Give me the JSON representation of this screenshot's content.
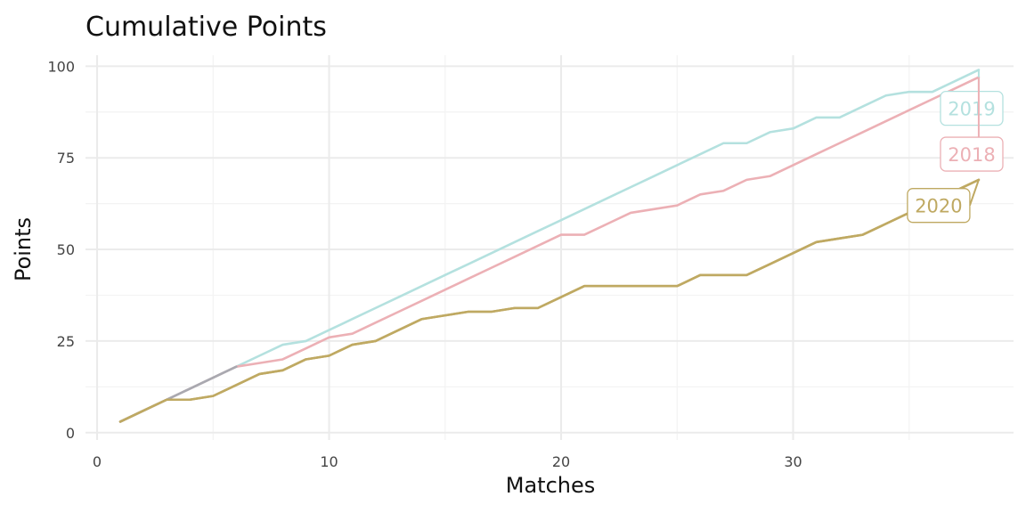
{
  "chart_data": {
    "type": "line",
    "title": "Cumulative Points",
    "xlabel": "Matches",
    "ylabel": "Points",
    "xlim": [
      -0.5,
      39.5
    ],
    "ylim": [
      -2,
      103
    ],
    "x_ticks": [
      0,
      10,
      20,
      30
    ],
    "x_tick_labels": [
      "0",
      "10",
      "20",
      "30"
    ],
    "y_ticks": [
      0,
      25,
      50,
      75,
      100
    ],
    "y_tick_labels": [
      "0",
      "25",
      "50",
      "75",
      "100"
    ],
    "grid": true,
    "legend": "none (direct labels at line ends)",
    "series": [
      {
        "name": "2019",
        "color": "#b4e1df",
        "x": [
          1,
          2,
          3,
          4,
          5,
          6,
          7,
          8,
          9,
          10,
          11,
          12,
          13,
          14,
          15,
          16,
          17,
          18,
          19,
          20,
          21,
          22,
          23,
          24,
          25,
          26,
          27,
          28,
          29,
          30,
          31,
          32,
          33,
          34,
          35,
          36,
          37,
          38
        ],
        "values": [
          3,
          6,
          9,
          12,
          15,
          18,
          21,
          24,
          25,
          28,
          31,
          34,
          37,
          40,
          43,
          46,
          49,
          52,
          55,
          58,
          61,
          64,
          67,
          70,
          73,
          76,
          79,
          79,
          82,
          83,
          86,
          86,
          89,
          92,
          93,
          93,
          96,
          99
        ]
      },
      {
        "name": "2018",
        "color": "#ecb0b5",
        "x": [
          1,
          2,
          3,
          4,
          5,
          6,
          7,
          8,
          9,
          10,
          11,
          12,
          13,
          14,
          15,
          16,
          17,
          18,
          19,
          20,
          21,
          22,
          23,
          24,
          25,
          26,
          27,
          28,
          29,
          30,
          31,
          32,
          33,
          34,
          35,
          36,
          37,
          38
        ],
        "values": [
          3,
          6,
          9,
          12,
          15,
          18,
          19,
          20,
          23,
          26,
          27,
          30,
          33,
          36,
          39,
          42,
          45,
          48,
          51,
          54,
          54,
          57,
          60,
          61,
          62,
          65,
          66,
          69,
          70,
          73,
          76,
          79,
          82,
          85,
          88,
          91,
          94,
          97
        ]
      },
      {
        "name": "2020",
        "color": "#bfa962",
        "x": [
          1,
          2,
          3,
          4,
          5,
          6,
          7,
          8,
          9,
          10,
          11,
          12,
          13,
          14,
          15,
          16,
          17,
          18,
          19,
          20,
          21,
          22,
          23,
          24,
          25,
          26,
          27,
          28,
          29,
          30,
          31,
          32,
          33,
          34,
          35,
          36,
          37,
          38
        ],
        "values": [
          3,
          6,
          9,
          9,
          10,
          13,
          16,
          17,
          20,
          21,
          24,
          25,
          28,
          31,
          32,
          33,
          33,
          34,
          34,
          37,
          40,
          40,
          40,
          40,
          40,
          43,
          43,
          43,
          46,
          49,
          52,
          53,
          54,
          57,
          60,
          63,
          66,
          69
        ]
      }
    ],
    "end_labels": [
      {
        "series": "2019",
        "text": "2019",
        "x": 38,
        "y": 99,
        "label_y": 88.5,
        "label_anchor": "right"
      },
      {
        "series": "2018",
        "text": "2018",
        "x": 38,
        "y": 97,
        "label_y": 76,
        "label_anchor": "right"
      },
      {
        "series": "2020",
        "text": "2020",
        "x": 38,
        "y": 69,
        "label_y": 62,
        "label_anchor": "center-left"
      }
    ],
    "overlap_color": "#a9a9b0"
  }
}
